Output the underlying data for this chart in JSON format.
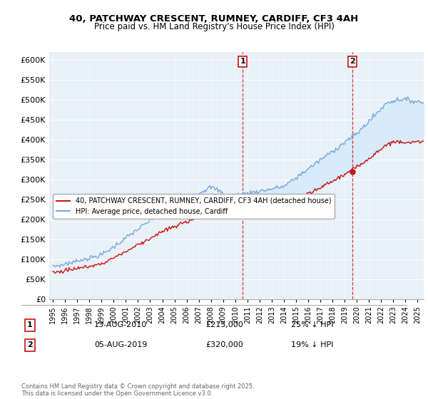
{
  "title": "40, PATCHWAY CRESCENT, RUMNEY, CARDIFF, CF3 4AH",
  "subtitle": "Price paid vs. HM Land Registry's House Price Index (HPI)",
  "hpi_label": "HPI: Average price, detached house, Cardiff",
  "property_label": "40, PATCHWAY CRESCENT, RUMNEY, CARDIFF, CF3 4AH (detached house)",
  "hpi_color": "#7aaadd",
  "property_color": "#cc1111",
  "fill_color": "#d0e8f8",
  "vline_color": "#cc1111",
  "background_color": "#e8f0f8",
  "sale1_date": "13-AUG-2010",
  "sale1_price": 215000,
  "sale1_pct": "25% ↓ HPI",
  "sale1_label": "1",
  "sale1_year": 2010.62,
  "sale2_date": "05-AUG-2019",
  "sale2_price": 320000,
  "sale2_pct": "19% ↓ HPI",
  "sale2_label": "2",
  "sale2_year": 2019.62,
  "ylim": [
    0,
    620000
  ],
  "yticks": [
    0,
    50000,
    100000,
    150000,
    200000,
    250000,
    300000,
    350000,
    400000,
    450000,
    500000,
    550000,
    600000
  ],
  "year_start": 1995,
  "year_end": 2025,
  "footnote": "Contains HM Land Registry data © Crown copyright and database right 2025.\nThis data is licensed under the Open Government Licence v3.0."
}
